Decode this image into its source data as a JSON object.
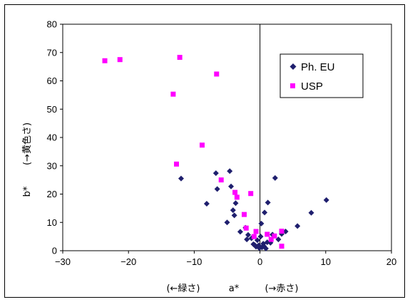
{
  "chart_data": {
    "type": "scatter",
    "x_axis": {
      "label": "a*",
      "left_label": "(←緑さ)",
      "right_label": "(→赤さ)",
      "min": -30,
      "max": 20,
      "ticks": [
        -30,
        -20,
        -10,
        0,
        10,
        20
      ],
      "tick_labels": [
        "−30",
        "−20",
        "−10",
        "0",
        "10",
        "20"
      ]
    },
    "y_axis": {
      "label": "b*",
      "sub_label": "(→黄色さ)",
      "min": 0,
      "max": 80,
      "ticks": [
        0,
        10,
        20,
        30,
        40,
        50,
        60,
        70,
        80
      ],
      "tick_labels": [
        "0",
        "10",
        "20",
        "30",
        "40",
        "50",
        "60",
        "70",
        "80"
      ]
    },
    "grid": false,
    "legend_position": "top-right",
    "series": [
      {
        "name": "Ph. EU",
        "color": "#1f1f6e",
        "marker": "diamond",
        "points": [
          [
            -12,
            25.5
          ],
          [
            -8.1,
            16.6
          ],
          [
            -6.7,
            27.4
          ],
          [
            -6.5,
            21.8
          ],
          [
            -4.6,
            28.1
          ],
          [
            -4.4,
            22.7
          ],
          [
            -4.1,
            14.3
          ],
          [
            -3.7,
            16.8
          ],
          [
            -3.9,
            12.5
          ],
          [
            -5.0,
            10.0
          ],
          [
            -3.0,
            6.7
          ],
          [
            -2.2,
            8.1
          ],
          [
            -2.0,
            4.0
          ],
          [
            -1.8,
            5.6
          ],
          [
            -1.3,
            4.4
          ],
          [
            -1.0,
            2.3
          ],
          [
            -0.8,
            2.0
          ],
          [
            -0.6,
            1.4
          ],
          [
            -0.4,
            3.7
          ],
          [
            -0.2,
            1.9
          ],
          [
            -0.1,
            0.9
          ],
          [
            0.1,
            5.0
          ],
          [
            0.2,
            9.6
          ],
          [
            0.3,
            1.2
          ],
          [
            0.5,
            2.5
          ],
          [
            0.6,
            1.6
          ],
          [
            0.7,
            13.5
          ],
          [
            0.9,
            0.8
          ],
          [
            1.1,
            3.0
          ],
          [
            1.2,
            17.0
          ],
          [
            1.6,
            2.8
          ],
          [
            1.9,
            5.7
          ],
          [
            2.3,
            25.7
          ],
          [
            2.8,
            4.0
          ],
          [
            3.3,
            5.9
          ],
          [
            3.9,
            6.8
          ],
          [
            5.7,
            8.7
          ],
          [
            7.8,
            13.4
          ],
          [
            10.1,
            17.9
          ]
        ]
      },
      {
        "name": "USP",
        "color": "#ff00ff",
        "marker": "square",
        "points": [
          [
            -23.6,
            67.1
          ],
          [
            -21.3,
            67.5
          ],
          [
            -12.2,
            68.3
          ],
          [
            -6.6,
            62.4
          ],
          [
            -13.2,
            55.3
          ],
          [
            -8.8,
            37.3
          ],
          [
            -12.7,
            30.6
          ],
          [
            -5.9,
            25.0
          ],
          [
            -3.8,
            20.6
          ],
          [
            -3.5,
            18.9
          ],
          [
            -1.4,
            20.2
          ],
          [
            -2.4,
            12.8
          ],
          [
            -2.1,
            8.0
          ],
          [
            -0.9,
            5.0
          ],
          [
            -0.6,
            6.8
          ],
          [
            1.1,
            5.8
          ],
          [
            1.7,
            4.0
          ],
          [
            2.2,
            5.2
          ],
          [
            3.3,
            6.9
          ],
          [
            3.3,
            1.6
          ]
        ]
      }
    ]
  }
}
